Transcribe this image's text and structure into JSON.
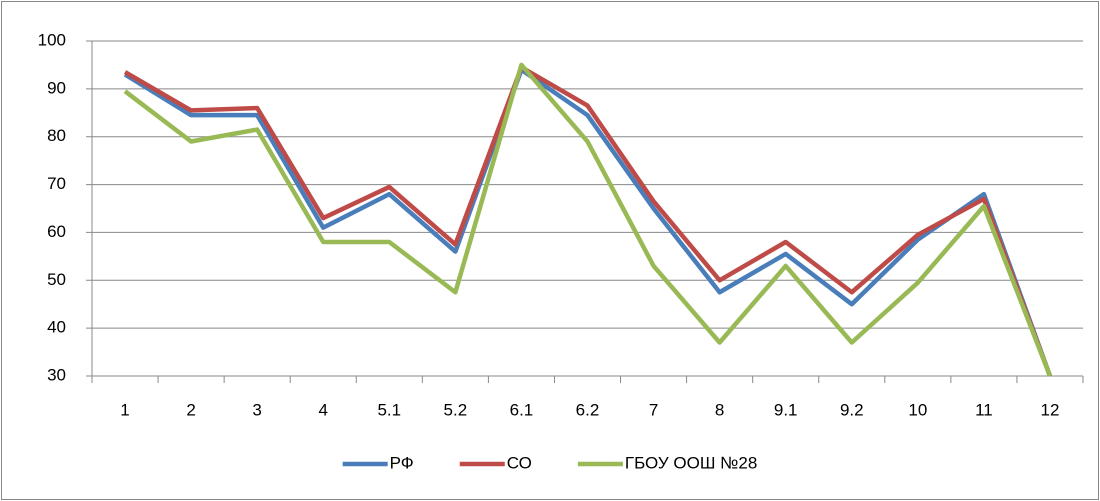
{
  "chart_data": {
    "type": "line",
    "categories": [
      "1",
      "2",
      "3",
      "4",
      "5.1",
      "5.2",
      "6.1",
      "6.2",
      "7",
      "8",
      "9.1",
      "9.2",
      "10",
      "11",
      "12"
    ],
    "series": [
      {
        "name": "РФ",
        "color": "#4a7ebb",
        "values": [
          93,
          84.5,
          84.5,
          61,
          68,
          56,
          94,
          84.5,
          65,
          47.5,
          55.5,
          45,
          58.5,
          68,
          30
        ]
      },
      {
        "name": "СО",
        "color": "#be4b48",
        "values": [
          93.5,
          85.5,
          86,
          63,
          69.5,
          57.5,
          94.5,
          86.5,
          66.5,
          50,
          58,
          47.5,
          59.5,
          67,
          30
        ]
      },
      {
        "name": "ГБОУ ООШ №28",
        "color": "#98b954",
        "values": [
          89.5,
          79,
          81.5,
          58,
          58,
          47.5,
          95,
          79,
          53,
          37,
          53,
          37,
          49.5,
          65.5,
          30
        ]
      }
    ],
    "ylim": [
      30,
      100
    ],
    "yticks": [
      30,
      40,
      50,
      60,
      70,
      80,
      90,
      100
    ],
    "grid": true,
    "legend": "bottom"
  }
}
